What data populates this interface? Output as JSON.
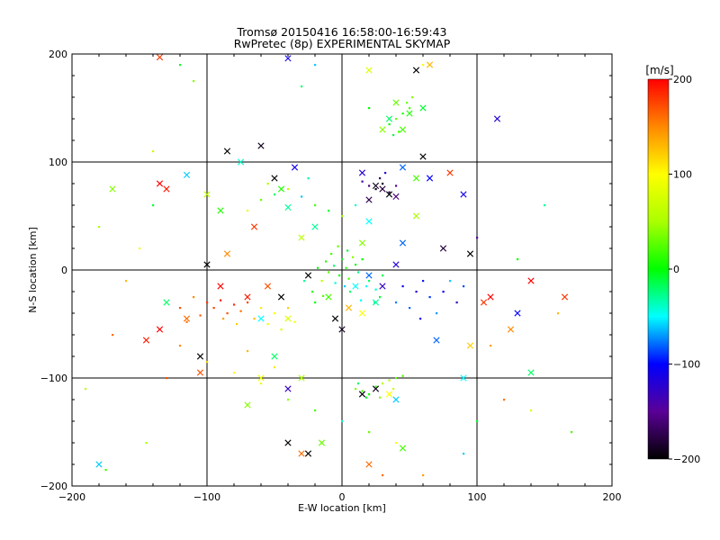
{
  "chart_data": {
    "type": "scatter",
    "title": "Tromsø 20150416 16:58:00-16:59:43",
    "subtitle": "RwPretec (8p) EXPERIMENTAL SKYMAP",
    "xlabel": "E-W location [km]",
    "ylabel": "N-S location [km]",
    "xlim": [
      -200,
      200
    ],
    "ylim": [
      -200,
      200
    ],
    "x_ticks": [
      -200,
      -100,
      0,
      100,
      200
    ],
    "y_ticks": [
      -200,
      -100,
      0,
      100,
      200
    ],
    "x_tick_labels": [
      "−200",
      "−100",
      "0",
      "100",
      "200"
    ],
    "y_tick_labels": [
      "−200",
      "−100",
      "0",
      "100",
      "200"
    ],
    "grid": true,
    "colorbar": {
      "label": "[m/s]",
      "min": -200,
      "max": 200,
      "ticks": [
        200,
        100,
        0,
        -100,
        -200
      ],
      "tick_labels": [
        "200",
        "100",
        "0",
        "−100",
        "−200"
      ]
    },
    "series": [
      {
        "marker": "dot",
        "points": [
          [
            -100,
            -30,
            180
          ],
          [
            -95,
            -35,
            175
          ],
          [
            -90,
            -28,
            190
          ],
          [
            -85,
            -40,
            170
          ],
          [
            -80,
            -32,
            185
          ],
          [
            -75,
            -38,
            160
          ],
          [
            -70,
            -30,
            175
          ],
          [
            -105,
            -42,
            165
          ],
          [
            -110,
            -25,
            150
          ],
          [
            -88,
            -45,
            140
          ],
          [
            -78,
            -50,
            120
          ],
          [
            -65,
            -45,
            130
          ],
          [
            -60,
            -35,
            110
          ],
          [
            -55,
            -50,
            90
          ],
          [
            -50,
            -40,
            100
          ],
          [
            -45,
            -55,
            80
          ],
          [
            -40,
            -35,
            120
          ],
          [
            -35,
            -48,
            95
          ],
          [
            -120,
            -35,
            170
          ],
          [
            -115,
            -48,
            160
          ],
          [
            -2,
            -5,
            0
          ],
          [
            3,
            2,
            10
          ],
          [
            -6,
            4,
            -20
          ],
          [
            5,
            -8,
            20
          ],
          [
            0,
            10,
            -10
          ],
          [
            -10,
            -2,
            30
          ],
          [
            10,
            5,
            0
          ],
          [
            -5,
            -12,
            -40
          ],
          [
            8,
            12,
            40
          ],
          [
            -12,
            8,
            10
          ],
          [
            2,
            -15,
            -60
          ],
          [
            12,
            -2,
            -30
          ],
          [
            -8,
            15,
            20
          ],
          [
            15,
            10,
            0
          ],
          [
            -15,
            -10,
            60
          ],
          [
            4,
            18,
            -10
          ],
          [
            18,
            -15,
            -50
          ],
          [
            -18,
            2,
            0
          ],
          [
            6,
            -20,
            -20
          ],
          [
            -3,
            22,
            30
          ],
          [
            20,
            -10,
            -20
          ],
          [
            25,
            -18,
            -40
          ],
          [
            28,
            -25,
            -10
          ],
          [
            14,
            -28,
            -50
          ],
          [
            -22,
            -20,
            10
          ],
          [
            -28,
            -10,
            -30
          ],
          [
            -20,
            -30,
            0
          ],
          [
            30,
            -5,
            -15
          ],
          [
            24,
            -30,
            -35
          ],
          [
            -14,
            -24,
            25
          ],
          [
            45,
            -15,
            -110
          ],
          [
            55,
            -20,
            -120
          ],
          [
            65,
            -25,
            -90
          ],
          [
            75,
            -20,
            -100
          ],
          [
            85,
            -30,
            -130
          ],
          [
            50,
            -35,
            -80
          ],
          [
            70,
            -40,
            -70
          ],
          [
            60,
            -10,
            -95
          ],
          [
            80,
            -10,
            -60
          ],
          [
            40,
            -30,
            -75
          ],
          [
            58,
            -45,
            -105
          ],
          [
            90,
            -15,
            -85
          ],
          [
            10,
            -110,
            40
          ],
          [
            15,
            -112,
            20
          ],
          [
            20,
            -115,
            0
          ],
          [
            25,
            -108,
            10
          ],
          [
            30,
            -105,
            60
          ],
          [
            35,
            -102,
            50
          ],
          [
            40,
            -100,
            30
          ],
          [
            45,
            -98,
            20
          ],
          [
            18,
            -118,
            -10
          ],
          [
            28,
            -118,
            40
          ],
          [
            38,
            -110,
            70
          ],
          [
            12,
            -105,
            -20
          ],
          [
            -60,
            65,
            30
          ],
          [
            -50,
            70,
            -20
          ],
          [
            -40,
            75,
            60
          ],
          [
            -30,
            68,
            -60
          ],
          [
            -20,
            60,
            20
          ],
          [
            -10,
            55,
            -10
          ],
          [
            0,
            50,
            40
          ],
          [
            10,
            60,
            -40
          ],
          [
            20,
            65,
            10
          ],
          [
            -70,
            55,
            90
          ],
          [
            -55,
            80,
            50
          ],
          [
            -25,
            85,
            -30
          ],
          [
            50,
            150,
            20
          ],
          [
            45,
            145,
            10
          ],
          [
            40,
            140,
            30
          ],
          [
            35,
            135,
            0
          ],
          [
            42,
            128,
            20
          ],
          [
            48,
            155,
            30
          ],
          [
            38,
            125,
            -10
          ],
          [
            52,
            160,
            40
          ],
          [
            -100,
            -85,
            120
          ],
          [
            -80,
            -95,
            100
          ],
          [
            -60,
            -105,
            90
          ],
          [
            -40,
            -120,
            40
          ],
          [
            -20,
            -130,
            20
          ],
          [
            0,
            -140,
            -40
          ],
          [
            20,
            -150,
            30
          ],
          [
            40,
            -160,
            100
          ],
          [
            -120,
            -70,
            150
          ],
          [
            -70,
            -75,
            130
          ],
          [
            -50,
            -90,
            110
          ],
          [
            -30,
            -100,
            60
          ],
          [
            -150,
            20,
            90
          ],
          [
            -160,
            -10,
            130
          ],
          [
            -140,
            60,
            -10
          ],
          [
            -130,
            -100,
            170
          ],
          [
            -170,
            -60,
            160
          ],
          [
            -180,
            40,
            50
          ],
          [
            -190,
            -110,
            60
          ],
          [
            -175,
            -185,
            20
          ],
          [
            100,
            30,
            -150
          ],
          [
            110,
            -70,
            140
          ],
          [
            120,
            -120,
            160
          ],
          [
            140,
            -130,
            80
          ],
          [
            160,
            -40,
            130
          ],
          [
            150,
            60,
            -30
          ],
          [
            170,
            -150,
            20
          ],
          [
            100,
            -140,
            -10
          ],
          [
            130,
            10,
            0
          ],
          [
            90,
            -170,
            -60
          ],
          [
            60,
            -190,
            140
          ],
          [
            30,
            -190,
            160
          ],
          [
            20,
            150,
            0
          ],
          [
            60,
            190,
            100
          ],
          [
            -30,
            170,
            -20
          ],
          [
            -20,
            190,
            -60
          ],
          [
            -120,
            190,
            -10
          ],
          [
            -110,
            175,
            40
          ],
          [
            -140,
            110,
            70
          ],
          [
            -145,
            -160,
            50
          ],
          [
            30,
            80,
            -200
          ],
          [
            25,
            75,
            -190
          ],
          [
            35,
            72,
            -180
          ],
          [
            28,
            85,
            -170
          ],
          [
            20,
            78,
            -160
          ],
          [
            15,
            82,
            -140
          ],
          [
            40,
            78,
            -150
          ],
          [
            32,
            90,
            -120
          ]
        ]
      },
      {
        "marker": "cross",
        "points": [
          [
            -170,
            75,
            40
          ],
          [
            -135,
            80,
            200
          ],
          [
            -130,
            75,
            190
          ],
          [
            -115,
            88,
            -60
          ],
          [
            -100,
            70,
            60
          ],
          [
            -90,
            55,
            10
          ],
          [
            -100,
            5,
            -200
          ],
          [
            -90,
            -15,
            200
          ],
          [
            -85,
            15,
            150
          ],
          [
            -70,
            -25,
            190
          ],
          [
            -130,
            -30,
            -20
          ],
          [
            -135,
            -55,
            200
          ],
          [
            -145,
            -65,
            190
          ],
          [
            -105,
            -95,
            170
          ],
          [
            -105,
            -80,
            -200
          ],
          [
            -115,
            -45,
            160
          ],
          [
            -55,
            -15,
            170
          ],
          [
            -45,
            -25,
            -200
          ],
          [
            -60,
            -45,
            -50
          ],
          [
            -40,
            -45,
            80
          ],
          [
            -25,
            -5,
            -200
          ],
          [
            -10,
            -25,
            20
          ],
          [
            -5,
            -45,
            -200
          ],
          [
            0,
            -55,
            -190
          ],
          [
            5,
            -35,
            130
          ],
          [
            15,
            -40,
            100
          ],
          [
            25,
            -30,
            -30
          ],
          [
            10,
            -15,
            -50
          ],
          [
            20,
            -5,
            -80
          ],
          [
            30,
            -15,
            -130
          ],
          [
            40,
            5,
            -120
          ],
          [
            45,
            25,
            -80
          ],
          [
            -20,
            40,
            -30
          ],
          [
            -30,
            30,
            60
          ],
          [
            15,
            25,
            40
          ],
          [
            20,
            45,
            -50
          ],
          [
            55,
            50,
            50
          ],
          [
            -40,
            -110,
            -130
          ],
          [
            -30,
            -100,
            50
          ],
          [
            15,
            -115,
            -200
          ],
          [
            25,
            -110,
            -190
          ],
          [
            35,
            -115,
            100
          ],
          [
            40,
            -120,
            -60
          ],
          [
            -15,
            -160,
            30
          ],
          [
            -25,
            -170,
            -200
          ],
          [
            20,
            -180,
            160
          ],
          [
            -60,
            -100,
            90
          ],
          [
            -70,
            -125,
            40
          ],
          [
            -50,
            -80,
            -20
          ],
          [
            35,
            70,
            -200
          ],
          [
            25,
            78,
            -190
          ],
          [
            30,
            75,
            -180
          ],
          [
            20,
            65,
            -170
          ],
          [
            40,
            68,
            -160
          ],
          [
            15,
            90,
            -120
          ],
          [
            45,
            95,
            -80
          ],
          [
            60,
            105,
            -200
          ],
          [
            65,
            85,
            -100
          ],
          [
            80,
            90,
            180
          ],
          [
            90,
            70,
            -110
          ],
          [
            55,
            85,
            20
          ],
          [
            -85,
            110,
            -200
          ],
          [
            -60,
            115,
            -190
          ],
          [
            -75,
            100,
            -40
          ],
          [
            -50,
            85,
            -200
          ],
          [
            -45,
            75,
            10
          ],
          [
            -35,
            95,
            -110
          ],
          [
            -65,
            40,
            180
          ],
          [
            -40,
            58,
            -30
          ],
          [
            40,
            155,
            30
          ],
          [
            50,
            145,
            10
          ],
          [
            45,
            130,
            20
          ],
          [
            35,
            140,
            -20
          ],
          [
            30,
            130,
            40
          ],
          [
            60,
            150,
            -10
          ],
          [
            20,
            185,
            80
          ],
          [
            55,
            185,
            -200
          ],
          [
            65,
            190,
            130
          ],
          [
            -40,
            196,
            -110
          ],
          [
            -135,
            197,
            180
          ],
          [
            105,
            -30,
            180
          ],
          [
            95,
            -70,
            120
          ],
          [
            125,
            -55,
            150
          ],
          [
            165,
            -25,
            180
          ],
          [
            130,
            -40,
            -100
          ],
          [
            140,
            -95,
            -20
          ],
          [
            90,
            -100,
            -50
          ],
          [
            70,
            -65,
            -80
          ],
          [
            110,
            -25,
            200
          ],
          [
            115,
            140,
            -120
          ],
          [
            140,
            -10,
            200
          ],
          [
            75,
            20,
            -180
          ],
          [
            95,
            15,
            -200
          ],
          [
            -180,
            -180,
            -60
          ],
          [
            -40,
            -160,
            -200
          ],
          [
            -30,
            -170,
            160
          ],
          [
            45,
            -165,
            20
          ]
        ]
      }
    ]
  }
}
